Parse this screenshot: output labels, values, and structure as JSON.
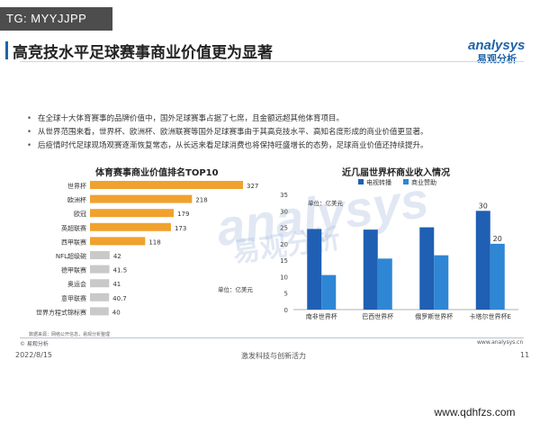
{
  "badge": "TG: MYYJJPP",
  "title": "高竞技水平足球赛事商业价值更为显著",
  "logo": {
    "en": "analysys",
    "cn": "易观分析"
  },
  "bullets": [
    "在全球十大体育赛事的品牌价值中，国外足球赛事占据了七席，且金额远超其他体育项目。",
    "从世界范围来看，世界杯、欧洲杯、欧洲联赛等国外足球赛事由于其高竞技水平、高知名度形成的商业价值更显著。",
    "后疫情时代足球现场观赛逐渐恢复常态，从长远来看足球消费也将保持旺盛增长的态势，足球商业价值还持续提升。"
  ],
  "watermark": {
    "en": "analysys",
    "cn": "易观分析"
  },
  "chart_data": [
    {
      "type": "bar",
      "orientation": "horizontal",
      "title": "体育赛事商业价值排名TOP10",
      "unit_label": "单位：亿美元",
      "categories": [
        "世界杯",
        "欧洲杯",
        "欧冠",
        "英超联赛",
        "西甲联赛",
        "NFL超级碗",
        "德甲联赛",
        "奥运会",
        "意甲联赛",
        "世界方程式锦标赛"
      ],
      "values": [
        327,
        218,
        179,
        173,
        118,
        42,
        41.5,
        41,
        40.7,
        40
      ],
      "value_labels": [
        "327",
        "218",
        "179",
        "173",
        "118",
        "42",
        "41.5",
        "41",
        "40.7",
        "40"
      ],
      "colors": [
        "#f0a22e",
        "#f0a22e",
        "#f0a22e",
        "#f0a22e",
        "#f0a22e",
        "#c9c9c9",
        "#c9c9c9",
        "#c9c9c9",
        "#c9c9c9",
        "#c9c9c9"
      ]
    },
    {
      "type": "bar",
      "title": "近几届世界杯商业收入情况",
      "unit_label": "单位：亿美元",
      "categories": [
        "南非世界杯",
        "巴西世界杯",
        "俄罗斯世界杯",
        "卡塔尔世界杯E"
      ],
      "series": [
        {
          "name": "电视转播",
          "values": [
            24.5,
            24.3,
            25,
            30
          ],
          "color": "#1f5fb4"
        },
        {
          "name": "商业赞助",
          "values": [
            10.5,
            15.5,
            16.5,
            20
          ],
          "color": "#2e86d4"
        }
      ],
      "data_labels": {
        "卡塔尔世界杯E": [
          "30",
          "20"
        ]
      },
      "yticks": [
        "0",
        "5",
        "10",
        "15",
        "20",
        "25",
        "30",
        "35"
      ],
      "ylim": [
        0,
        35
      ]
    }
  ],
  "source": "数据来源：网络公开信息，易观分析整理",
  "copyright": "© 易观分析",
  "site": "www.analysys.cn",
  "date": "2022/8/15",
  "slogan": "激发科技与创新活力",
  "page_number": "11",
  "banner": "www.qdhfzs.com"
}
